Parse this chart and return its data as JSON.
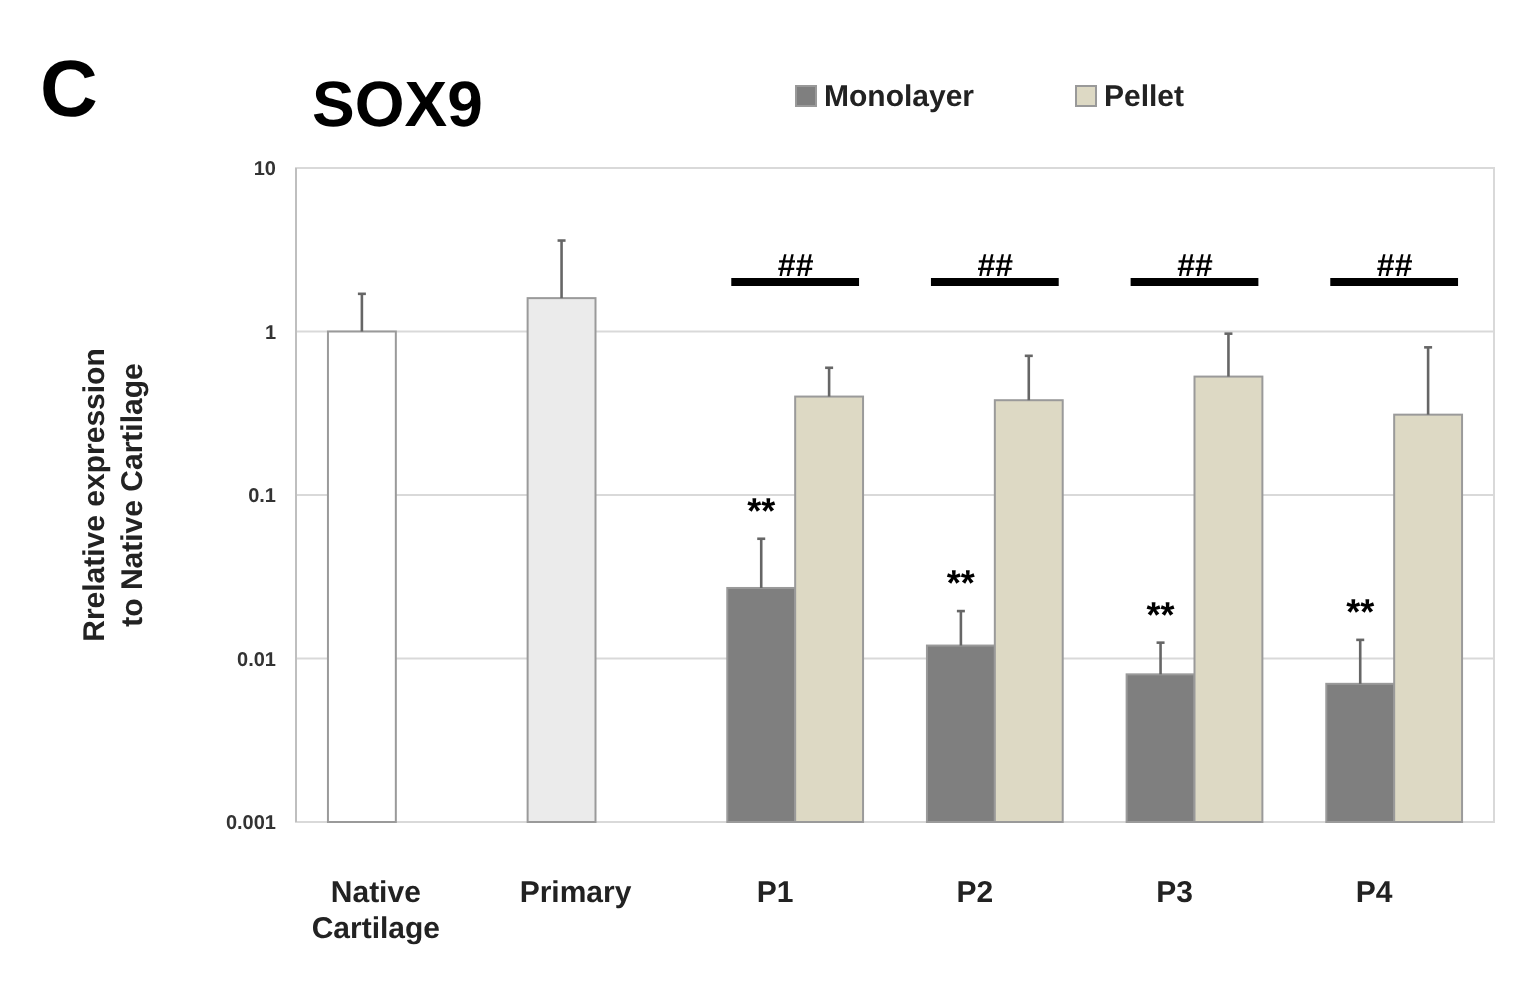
{
  "chart_data": {
    "type": "bar",
    "title": "SOX9",
    "ylabel": "Rrelative expression to Native Cartilage",
    "categories": [
      "Native Cartilage",
      "Primary",
      "P1",
      "P2",
      "P3",
      "P4"
    ],
    "series": [
      {
        "colors": [
          "#ffffff",
          "#ebebeb",
          null,
          null,
          null,
          null
        ],
        "values": [
          1,
          1.6,
          null,
          null,
          null,
          null
        ],
        "errors": [
          [
            1,
            1.7
          ],
          [
            1.6,
            3.6
          ],
          null,
          null,
          null,
          null
        ]
      },
      {
        "name": "Monolayer",
        "color": "#7f7f7f",
        "values": [
          null,
          null,
          0.027,
          0.012,
          0.008,
          0.007
        ],
        "errors": [
          null,
          null,
          [
            0.027,
            0.054
          ],
          [
            0.012,
            0.0195
          ],
          [
            0.008,
            0.0125
          ],
          [
            0.007,
            0.013
          ]
        ]
      },
      {
        "name": "Pellet",
        "color": "#ddd9c4",
        "values": [
          null,
          null,
          0.4,
          0.38,
          0.53,
          0.31
        ],
        "errors": [
          null,
          null,
          [
            0.4,
            0.6
          ],
          [
            0.38,
            0.71
          ],
          [
            0.53,
            0.97
          ],
          [
            0.31,
            0.8
          ]
        ]
      }
    ],
    "log": true,
    "ylim": [
      0.001,
      10
    ],
    "yticks": [
      0.001,
      0.01,
      0.1,
      1,
      10
    ],
    "grid": "y",
    "legend": "top",
    "annotations": [
      "C",
      "**",
      "**",
      "**",
      "**",
      "##",
      "##",
      "##",
      "##"
    ]
  }
}
